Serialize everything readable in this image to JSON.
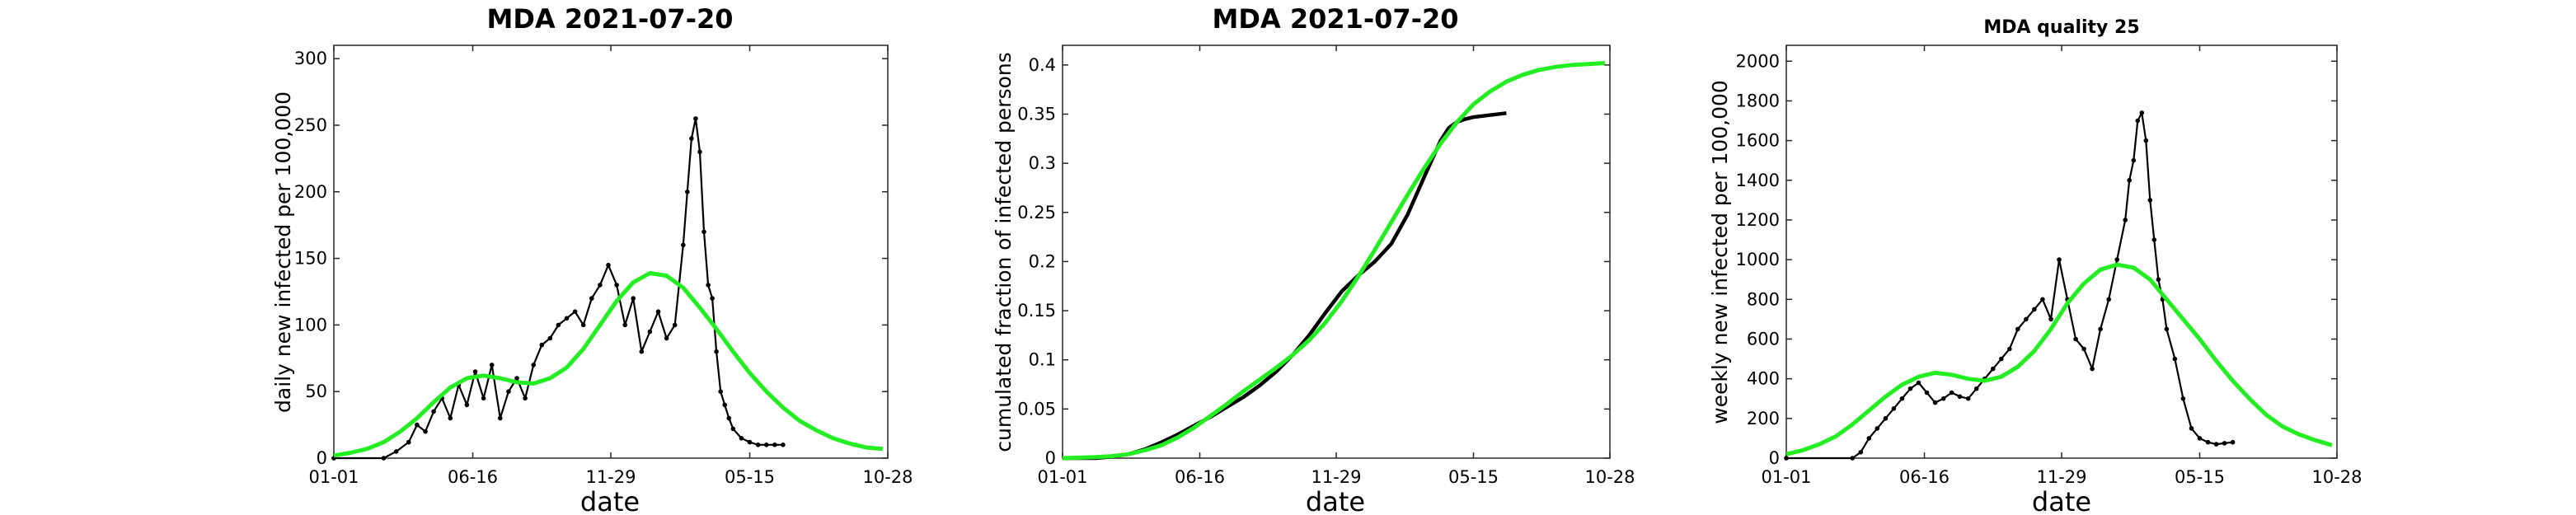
{
  "figure": {
    "panels": [
      {
        "title": "MDA   2021-07-20",
        "xlabel": "date",
        "ylabel": "daily new infected per 100,000"
      },
      {
        "title": "MDA   2021-07-20",
        "xlabel": "date",
        "ylabel": "cumulated fraction of infected persons"
      },
      {
        "title": "MDA  quality 25",
        "xlabel": "date",
        "ylabel": "weekly new infected per 100,000"
      }
    ]
  },
  "colors": {
    "observed": "#000000",
    "model": "#22ee22",
    "axis": "#262626"
  },
  "chart_data": [
    {
      "type": "line",
      "title": "MDA   2021-07-20",
      "xlabel": "date",
      "ylabel": "daily new infected per 100,000",
      "x_ticks": [
        "01-01",
        "06-16",
        "11-29",
        "05-15",
        "10-28"
      ],
      "x_tick_days": [
        0,
        167,
        333,
        500,
        666
      ],
      "xlim": [
        0,
        666
      ],
      "ylim": [
        0,
        310
      ],
      "y_ticks": [
        0,
        50,
        100,
        150,
        200,
        250,
        300
      ],
      "grid": false,
      "series": [
        {
          "role": "observed",
          "x": [
            0,
            60,
            75,
            90,
            100,
            110,
            120,
            130,
            140,
            150,
            160,
            170,
            180,
            190,
            200,
            210,
            220,
            230,
            240,
            250,
            260,
            270,
            280,
            290,
            300,
            310,
            320,
            330,
            340,
            350,
            360,
            370,
            380,
            390,
            400,
            410,
            420,
            425,
            430,
            435,
            440,
            445,
            450,
            455,
            460,
            465,
            470,
            475,
            480,
            490,
            500,
            510,
            520,
            530,
            540
          ],
          "y": [
            0,
            0,
            5,
            12,
            25,
            20,
            35,
            45,
            30,
            55,
            40,
            65,
            45,
            70,
            30,
            50,
            60,
            45,
            70,
            85,
            90,
            100,
            105,
            110,
            100,
            120,
            130,
            145,
            130,
            100,
            120,
            80,
            95,
            110,
            90,
            100,
            160,
            200,
            240,
            255,
            230,
            170,
            130,
            120,
            80,
            50,
            40,
            30,
            22,
            15,
            12,
            10,
            10,
            10,
            10
          ]
        },
        {
          "role": "model",
          "x": [
            0,
            20,
            40,
            60,
            80,
            100,
            120,
            140,
            160,
            180,
            200,
            220,
            240,
            260,
            280,
            300,
            320,
            340,
            360,
            380,
            400,
            420,
            440,
            460,
            480,
            500,
            520,
            540,
            560,
            580,
            600,
            620,
            640,
            660
          ],
          "y": [
            2,
            4,
            7,
            12,
            20,
            30,
            42,
            53,
            60,
            62,
            60,
            57,
            56,
            60,
            68,
            82,
            100,
            118,
            132,
            139,
            137,
            128,
            113,
            97,
            80,
            64,
            50,
            38,
            28,
            21,
            15,
            11,
            8,
            7
          ]
        }
      ]
    },
    {
      "type": "line",
      "title": "MDA   2021-07-20",
      "xlabel": "date",
      "ylabel": "cumulated fraction of infected persons",
      "x_ticks": [
        "01-01",
        "06-16",
        "11-29",
        "05-15",
        "10-28"
      ],
      "x_tick_days": [
        0,
        167,
        333,
        500,
        666
      ],
      "xlim": [
        0,
        666
      ],
      "ylim": [
        0,
        0.42
      ],
      "y_ticks": [
        0,
        0.05,
        0.1,
        0.15,
        0.2,
        0.25,
        0.3,
        0.35,
        0.4
      ],
      "grid": false,
      "series": [
        {
          "role": "observed",
          "x": [
            0,
            40,
            60,
            80,
            100,
            120,
            140,
            160,
            180,
            200,
            220,
            240,
            260,
            280,
            300,
            320,
            340,
            360,
            380,
            400,
            420,
            440,
            460,
            470,
            480,
            490,
            500,
            520,
            540
          ],
          "y": [
            0,
            0,
            0.0015,
            0.004,
            0.009,
            0.016,
            0.024,
            0.033,
            0.042,
            0.052,
            0.062,
            0.074,
            0.088,
            0.105,
            0.125,
            0.148,
            0.17,
            0.186,
            0.2,
            0.218,
            0.248,
            0.286,
            0.323,
            0.336,
            0.342,
            0.345,
            0.347,
            0.349,
            0.351
          ]
        },
        {
          "role": "model",
          "x": [
            0,
            40,
            60,
            80,
            100,
            120,
            140,
            160,
            180,
            200,
            220,
            240,
            260,
            280,
            300,
            320,
            340,
            360,
            380,
            400,
            420,
            440,
            460,
            480,
            500,
            520,
            540,
            560,
            580,
            600,
            620,
            640,
            660
          ],
          "y": [
            0,
            0.001,
            0.002,
            0.004,
            0.008,
            0.013,
            0.021,
            0.031,
            0.043,
            0.055,
            0.068,
            0.08,
            0.092,
            0.105,
            0.12,
            0.138,
            0.16,
            0.185,
            0.212,
            0.24,
            0.268,
            0.295,
            0.32,
            0.342,
            0.36,
            0.373,
            0.383,
            0.39,
            0.395,
            0.398,
            0.4,
            0.401,
            0.402
          ]
        }
      ]
    },
    {
      "type": "line",
      "title": "MDA  quality 25",
      "xlabel": "date",
      "ylabel": "weekly new infected per 100,000",
      "x_ticks": [
        "01-01",
        "06-16",
        "11-29",
        "05-15",
        "10-28"
      ],
      "x_tick_days": [
        0,
        167,
        333,
        500,
        666
      ],
      "xlim": [
        0,
        666
      ],
      "ylim": [
        0,
        2080
      ],
      "y_ticks": [
        0,
        200,
        400,
        600,
        800,
        1000,
        1200,
        1400,
        1600,
        1800,
        2000
      ],
      "grid": false,
      "series": [
        {
          "role": "observed",
          "x": [
            0,
            80,
            90,
            100,
            110,
            120,
            130,
            140,
            150,
            160,
            170,
            180,
            190,
            200,
            210,
            220,
            230,
            240,
            250,
            260,
            270,
            280,
            290,
            300,
            310,
            320,
            330,
            340,
            350,
            360,
            370,
            380,
            390,
            400,
            410,
            415,
            420,
            425,
            430,
            435,
            440,
            445,
            450,
            455,
            460,
            470,
            480,
            490,
            500,
            510,
            520,
            530,
            540
          ],
          "y": [
            0,
            0,
            30,
            100,
            150,
            200,
            250,
            300,
            350,
            380,
            330,
            280,
            300,
            330,
            310,
            300,
            350,
            400,
            450,
            500,
            550,
            650,
            700,
            750,
            800,
            700,
            1000,
            800,
            600,
            550,
            450,
            650,
            800,
            1000,
            1200,
            1400,
            1500,
            1700,
            1740,
            1600,
            1300,
            1100,
            900,
            800,
            650,
            500,
            300,
            150,
            100,
            80,
            70,
            75,
            80
          ]
        },
        {
          "role": "model",
          "x": [
            0,
            20,
            40,
            60,
            80,
            100,
            120,
            140,
            160,
            180,
            200,
            220,
            240,
            260,
            280,
            300,
            320,
            340,
            360,
            380,
            400,
            420,
            440,
            460,
            480,
            500,
            520,
            540,
            560,
            580,
            600,
            620,
            640,
            660
          ],
          "y": [
            20,
            40,
            70,
            110,
            170,
            240,
            310,
            370,
            410,
            430,
            420,
            400,
            390,
            410,
            460,
            540,
            650,
            780,
            880,
            950,
            975,
            960,
            900,
            800,
            700,
            600,
            490,
            390,
            300,
            220,
            160,
            120,
            90,
            65
          ]
        }
      ]
    }
  ]
}
